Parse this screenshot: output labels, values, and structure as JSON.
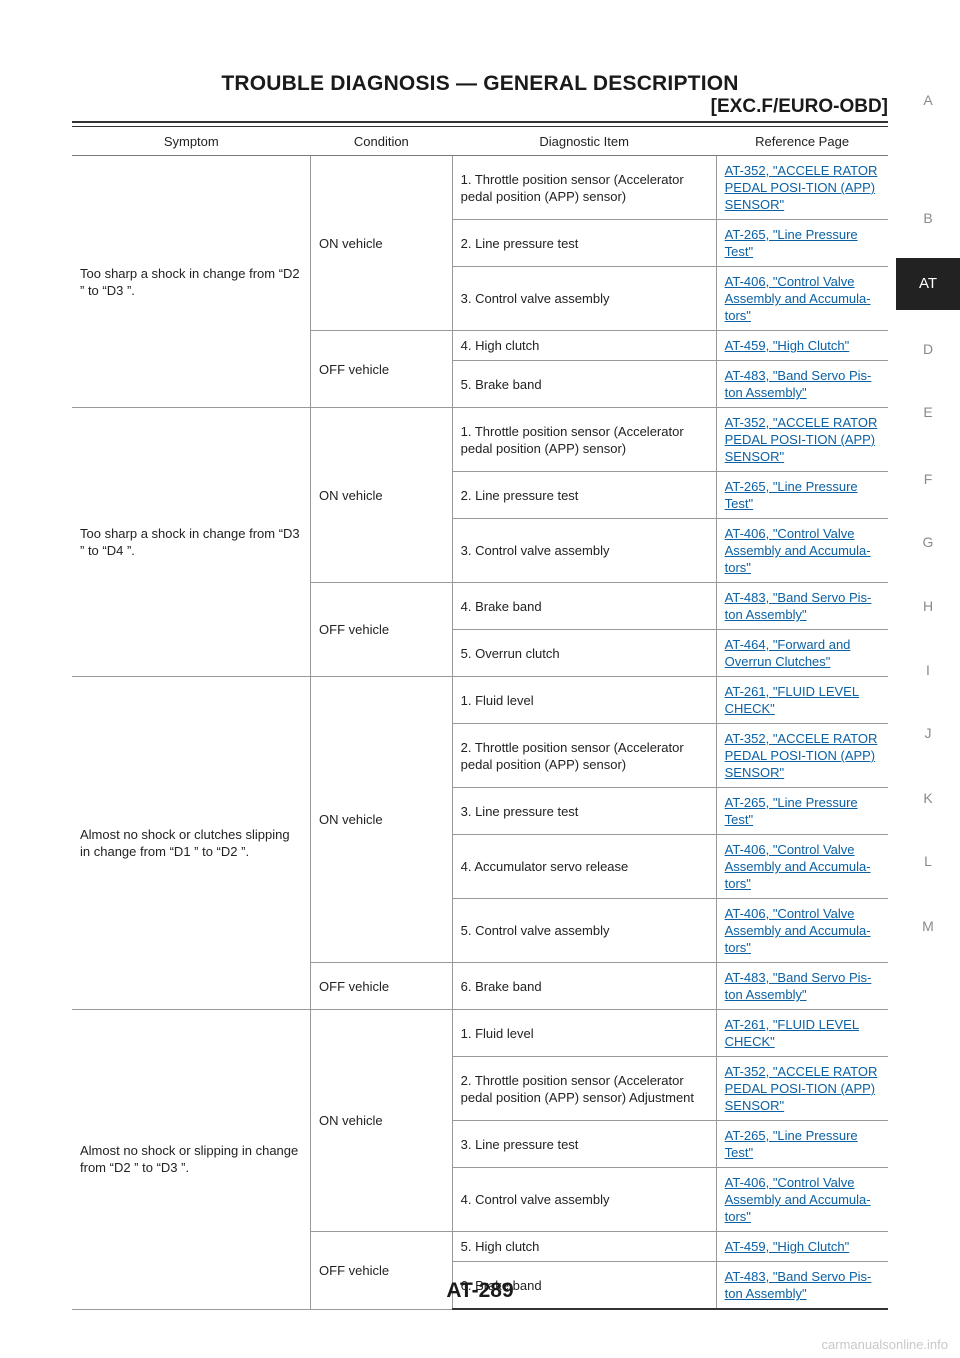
{
  "header": {
    "title": "TROUBLE DIAGNOSIS — GENERAL DESCRIPTION",
    "subtitle": "[EXC.F/EURO-OBD]"
  },
  "sidebar": {
    "letters": [
      "A",
      "B",
      "AT",
      "D",
      "E",
      "F",
      "G",
      "H",
      "I",
      "J",
      "K",
      "L",
      "M"
    ],
    "active": "AT"
  },
  "table": {
    "headers": [
      "Symptom",
      "Condition",
      "Diagnostic Item",
      "Reference Page"
    ],
    "groups": [
      {
        "symptom": "Too sharp a shock in change from “D2 ” to “D3 ”.",
        "conditions": [
          {
            "label": "ON vehicle",
            "items": [
              {
                "diag": "1. Throttle position sensor (Accelerator pedal position (APP) sensor)",
                "ref": "AT-352, \"ACCELE RATOR PEDAL POSI-TION (APP) SENSOR\""
              },
              {
                "diag": "2. Line pressure test",
                "ref": "AT-265, \"Line Pressure Test\""
              },
              {
                "diag": "3. Control valve assembly",
                "ref": "AT-406, \"Control Valve Assembly and Accumula-tors\""
              }
            ]
          },
          {
            "label": "OFF vehicle",
            "items": [
              {
                "diag": "4. High clutch",
                "ref": "AT-459, \"High Clutch\""
              },
              {
                "diag": "5. Brake band",
                "ref": "AT-483, \"Band Servo Pis-ton Assembly\""
              }
            ]
          }
        ]
      },
      {
        "symptom": "Too sharp a shock in change from “D3 ” to “D4 ”.",
        "conditions": [
          {
            "label": "ON vehicle",
            "items": [
              {
                "diag": "1. Throttle position sensor (Accelerator pedal position (APP) sensor)",
                "ref": "AT-352, \"ACCELE RATOR PEDAL POSI-TION (APP) SENSOR\""
              },
              {
                "diag": "2. Line pressure test",
                "ref": "AT-265, \"Line Pressure Test\""
              },
              {
                "diag": "3. Control valve assembly",
                "ref": "AT-406, \"Control Valve Assembly and Accumula-tors\""
              }
            ]
          },
          {
            "label": "OFF vehicle",
            "items": [
              {
                "diag": "4. Brake band",
                "ref": "AT-483, \"Band Servo Pis-ton Assembly\""
              },
              {
                "diag": "5. Overrun clutch",
                "ref": "AT-464, \"Forward and Overrun Clutches\""
              }
            ]
          }
        ]
      },
      {
        "symptom": "Almost no shock or clutches slipping in change from “D1 ” to “D2 ”.",
        "conditions": [
          {
            "label": "ON vehicle",
            "items": [
              {
                "diag": "1. Fluid level",
                "ref": "AT-261, \"FLUID LEVEL CHECK\""
              },
              {
                "diag": "2. Throttle position sensor (Accelerator pedal position (APP) sensor)",
                "ref": "AT-352, \"ACCELE RATOR PEDAL POSI-TION (APP) SENSOR\""
              },
              {
                "diag": "3. Line pressure test",
                "ref": "AT-265, \"Line Pressure Test\""
              },
              {
                "diag": "4. Accumulator servo release",
                "ref": "AT-406, \"Control Valve Assembly and Accumula-tors\""
              },
              {
                "diag": "5. Control valve assembly",
                "ref": "AT-406, \"Control Valve Assembly and Accumula-tors\""
              }
            ]
          },
          {
            "label": "OFF vehicle",
            "items": [
              {
                "diag": "6. Brake band",
                "ref": "AT-483, \"Band Servo Pis-ton Assembly\""
              }
            ]
          }
        ]
      },
      {
        "symptom": "Almost no shock or slipping in change from “D2 ” to “D3 ”.",
        "conditions": [
          {
            "label": "ON vehicle",
            "items": [
              {
                "diag": "1. Fluid level",
                "ref": "AT-261, \"FLUID LEVEL CHECK\""
              },
              {
                "diag": "2. Throttle position sensor (Accelerator pedal position (APP) sensor) Adjustment",
                "ref": "AT-352, \"ACCELE RATOR PEDAL POSI-TION (APP) SENSOR\""
              },
              {
                "diag": "3. Line pressure test",
                "ref": "AT-265, \"Line Pressure Test\""
              },
              {
                "diag": "4. Control valve assembly",
                "ref": "AT-406, \"Control Valve Assembly and Accumula-tors\""
              }
            ]
          },
          {
            "label": "OFF vehicle",
            "items": [
              {
                "diag": "5. High clutch",
                "ref": "AT-459, \"High Clutch\""
              },
              {
                "diag": "6. Brake band",
                "ref": "AT-483, \"Band Servo Pis-ton Assembly\""
              }
            ]
          }
        ]
      }
    ]
  },
  "footer": {
    "page_number": "AT-289",
    "watermark": "carmanualsonline.info"
  }
}
